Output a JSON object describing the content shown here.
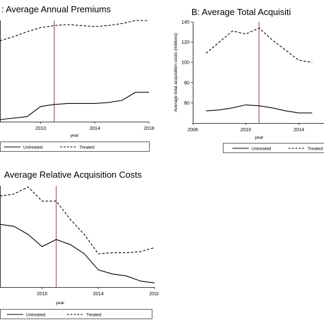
{
  "panels": [
    {
      "id": "A",
      "title": ":  Average Annual Premiums",
      "chart_data": {
        "type": "line",
        "xlabel": "year",
        "ylabel": "",
        "xlim": [
          2007,
          2018
        ],
        "ylim": [
          0,
          100
        ],
        "xticks": [
          2010,
          2014,
          2018
        ],
        "yticks": [],
        "treatment_year": 2011,
        "series": [
          {
            "name": "Untreated",
            "dash": "solid",
            "x": [
              2007,
              2009,
              2010,
              2011,
              2012,
              2013,
              2014,
              2015,
              2016,
              2017,
              2018
            ],
            "y": [
              2,
              5,
              15,
              17,
              18,
              18,
              18,
              19,
              21,
              29,
              29
            ]
          },
          {
            "name": "Treated",
            "dash": "dashed",
            "x": [
              2007,
              2008,
              2009,
              2010,
              2011,
              2012,
              2013,
              2014,
              2015,
              2016,
              2017,
              2018
            ],
            "y": [
              80,
              84,
              89,
              93,
              95,
              96,
              95,
              94,
              95,
              97,
              100,
              100
            ]
          }
        ]
      }
    },
    {
      "id": "B",
      "title": "B: Average Total Acquisiti",
      "chart_data": {
        "type": "line",
        "xlabel": "year",
        "ylabel": "Average total acquisition costs (millions)",
        "xlim": [
          2006,
          2016
        ],
        "ylim": [
          40,
          140
        ],
        "xticks": [
          2006,
          2010,
          2014
        ],
        "yticks": [
          60,
          80,
          100,
          120,
          140
        ],
        "treatment_year": 2011,
        "series": [
          {
            "name": "Untreated",
            "dash": "solid",
            "x": [
              2007,
              2008,
              2009,
              2010,
              2011,
              2012,
              2013,
              2014,
              2015
            ],
            "y": [
              52,
              53,
              55,
              58,
              57,
              55,
              52,
              50,
              50
            ]
          },
          {
            "name": "Treated",
            "dash": "dashed",
            "x": [
              2007,
              2008,
              2009,
              2010,
              2011,
              2012,
              2013,
              2014,
              2015
            ],
            "y": [
              109,
              120,
              131,
              128,
              134,
              122,
              112,
              102,
              100
            ]
          }
        ]
      }
    },
    {
      "id": "C",
      "title": "Average Relative Acquisition Costs",
      "chart_data": {
        "type": "line",
        "xlabel": "year",
        "ylabel": "",
        "xlim": [
          2007,
          2018
        ],
        "ylim": [
          0,
          100
        ],
        "xticks": [
          2010,
          2014,
          2018
        ],
        "yticks": [],
        "treatment_year": 2011,
        "series": [
          {
            "name": "Untreated",
            "dash": "solid",
            "x": [
              2007,
              2008,
              2009,
              2010,
              2011,
              2012,
              2013,
              2014,
              2015,
              2016,
              2017,
              2018
            ],
            "y": [
              62,
              60,
              52,
              40,
              47,
              42,
              33,
              17,
              13,
              11,
              6,
              4
            ]
          },
          {
            "name": "Treated",
            "dash": "dashed",
            "x": [
              2007,
              2008,
              2009,
              2010,
              2011,
              2012,
              2013,
              2014,
              2015,
              2016,
              2017,
              2018
            ],
            "y": [
              90,
              92,
              99,
              85,
              85,
              67,
              52,
              33,
              34,
              34,
              35,
              39
            ]
          }
        ]
      }
    }
  ],
  "legend": {
    "untreated": "Untreated",
    "treated": "Treated"
  },
  "colors": {
    "line": "#000000",
    "treatment_line": "#8b2252",
    "frame": "#000000"
  }
}
